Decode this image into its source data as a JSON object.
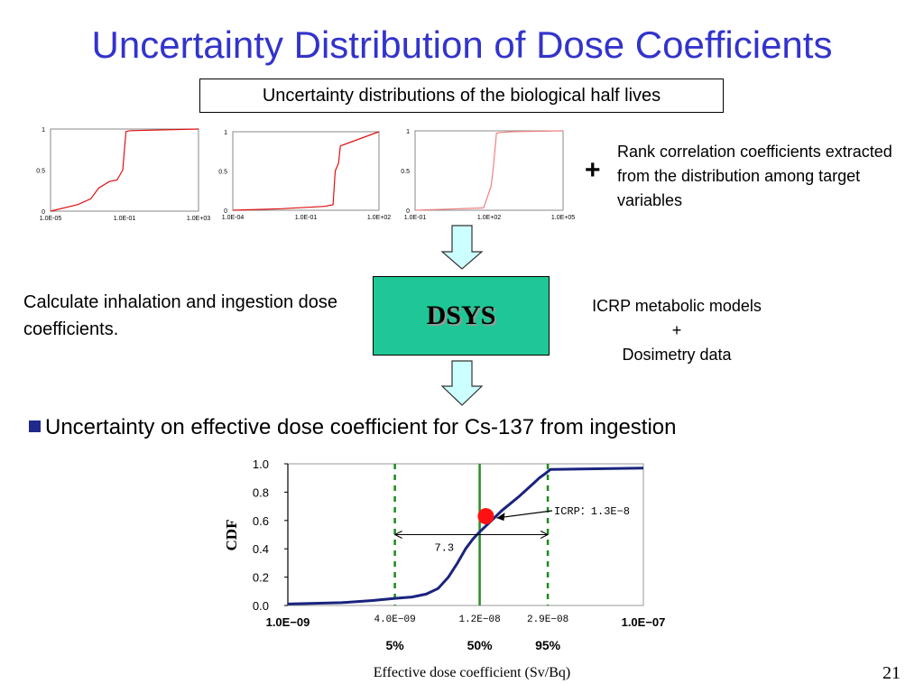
{
  "title": "Uncertainty Distribution of Dose Coefficients",
  "subtitle_box": "Uncertainty distributions of the biological half lives",
  "plus_sign": "+",
  "rank_correlation_text": "Rank correlation coefficients extracted from the distribution among target variables",
  "calc_text": "Calculate inhalation and ingestion dose coefficients.",
  "dsys_label": "DSYS",
  "icrp_models": {
    "line1": "ICRP metabolic models",
    "plus": "+",
    "line2": "Dosimetry data"
  },
  "bullet_text": "Uncertainty on effective dose coefficient for Cs-137 from ingestion",
  "page_number": "21",
  "colors": {
    "title": "#3333cc",
    "dsys_box": "#1fc796",
    "arrow_fill": "#ccffff",
    "cdf_line": "#1a237e",
    "marker": "#ff1111",
    "dashed_lines": "#1c8a1c",
    "median_line": "#2a8c2a",
    "small_chart_line": "#e01010",
    "small_chart_line_light": "#f08080"
  },
  "chart_data": [
    {
      "type": "line",
      "scale": "log-x",
      "xlim": [
        1e-05,
        1000
      ],
      "ylim": [
        0,
        1
      ],
      "x_tick_labels": [
        "1.0E-05",
        "1.0E-01",
        "1.0E+03"
      ],
      "y_tick_labels": [
        "0",
        "0.5",
        "1"
      ],
      "x": [
        1e-05,
        0.0003,
        0.0015,
        0.004,
        0.015,
        0.04,
        0.08,
        0.12,
        0.2,
        1000
      ],
      "values": [
        0.0,
        0.08,
        0.15,
        0.28,
        0.36,
        0.38,
        0.5,
        0.97,
        0.98,
        1.0
      ]
    },
    {
      "type": "line",
      "scale": "log-x",
      "xlim": [
        0.0001,
        100
      ],
      "ylim": [
        0,
        1
      ],
      "x_tick_labels": [
        "1.0E-04",
        "1.0E-01",
        "1.0E+02"
      ],
      "y_tick_labels": [
        "0",
        "0.5",
        "1"
      ],
      "x": [
        0.0001,
        0.01,
        0.6,
        1.3,
        1.6,
        2.2,
        2.6,
        100
      ],
      "values": [
        0.0,
        0.02,
        0.05,
        0.07,
        0.5,
        0.6,
        0.82,
        1.0
      ]
    },
    {
      "type": "line",
      "scale": "log-x",
      "xlim": [
        0.1,
        100000
      ],
      "ylim": [
        0,
        1
      ],
      "x_tick_labels": [
        "1.0E-01",
        "1.0E+02",
        "1.0E+05"
      ],
      "y_tick_labels": [
        "0",
        "0.5",
        "1"
      ],
      "x": [
        0.1,
        60,
        120,
        150,
        200,
        300,
        1000,
        100000
      ],
      "values": [
        0.0,
        0.03,
        0.3,
        0.55,
        0.97,
        0.98,
        0.99,
        1.0
      ]
    },
    {
      "type": "line",
      "scale": "log-x",
      "xlim": [
        1e-09,
        1e-07
      ],
      "ylim": [
        0,
        1
      ],
      "ylabel": "CDF",
      "xlabel": "Effective dose coefficient (Sv/Bq)",
      "y_tick_labels": [
        "0.0",
        "0.2",
        "0.4",
        "0.6",
        "0.8",
        "1.0"
      ],
      "x_axis_labels": {
        "left": "1.0E−09",
        "right": "1.0E−07"
      },
      "x": [
        1e-09,
        2e-09,
        3e-09,
        4e-09,
        5e-09,
        6e-09,
        7e-09,
        8e-09,
        9e-09,
        1e-08,
        1.1e-08,
        1.2e-08,
        1.4e-08,
        1.6e-08,
        2e-08,
        2.4e-08,
        2.6e-08,
        2.8e-08,
        3e-08,
        1e-07
      ],
      "values": [
        0.01,
        0.02,
        0.035,
        0.05,
        0.06,
        0.08,
        0.12,
        0.2,
        0.3,
        0.4,
        0.47,
        0.52,
        0.6,
        0.67,
        0.77,
        0.86,
        0.9,
        0.93,
        0.96,
        0.97
      ],
      "percentiles": [
        {
          "value_label": "4.0E−09",
          "percent_label": "5%",
          "x": 4e-09,
          "y": 0.05
        },
        {
          "value_label": "1.2E−08",
          "percent_label": "50%",
          "x": 1.2e-08,
          "y": 0.5
        },
        {
          "value_label": "2.9E−08",
          "percent_label": "95%",
          "x": 2.9e-08,
          "y": 0.95
        }
      ],
      "icrp": {
        "label": "ICRP：1.3E−8",
        "x": 1.3e-08,
        "y": 0.63
      },
      "ratio_label": "7.3"
    }
  ]
}
